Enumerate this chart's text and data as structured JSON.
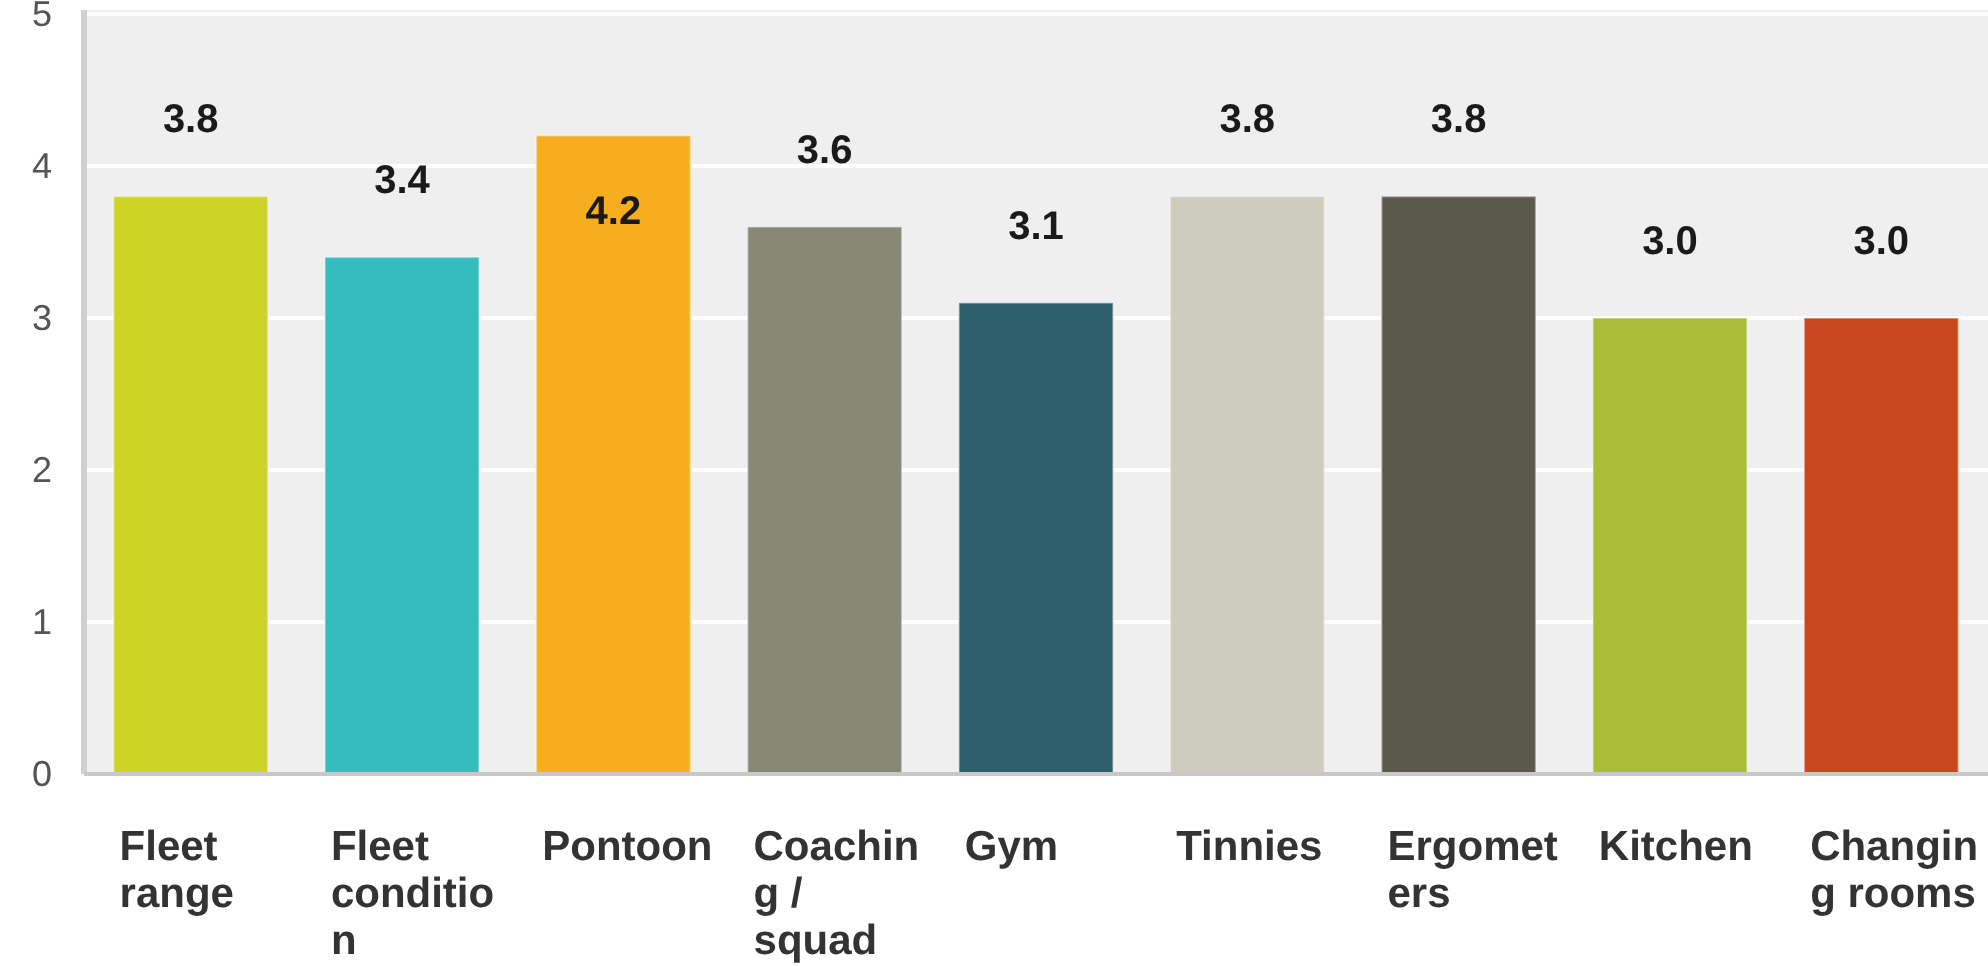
{
  "chart_data": {
    "type": "bar",
    "categories": [
      "Fleet range",
      "Fleet condition",
      "Pontoon",
      "Coaching / squad",
      "Gym",
      "Tinnies",
      "Ergometers",
      "Kitchen",
      "Changing rooms"
    ],
    "values": [
      3.8,
      3.4,
      4.2,
      3.6,
      3.1,
      3.8,
      3.8,
      3.0,
      3.0
    ],
    "value_labels": [
      "3.8",
      "3.4",
      "4.2",
      "3.6",
      "3.1",
      "3.8",
      "3.8",
      "3.0",
      "3.0"
    ],
    "colors": [
      "#ced425",
      "#33bdbf",
      "#f6ae1f",
      "#878876",
      "#2e5f6c",
      "#cecdbd",
      "#5b5a4a",
      "#a9bd38",
      "#c9471d"
    ],
    "ylim": [
      0,
      5
    ],
    "yticks": [
      0,
      1,
      2,
      3,
      4,
      5
    ],
    "grid": "y"
  }
}
